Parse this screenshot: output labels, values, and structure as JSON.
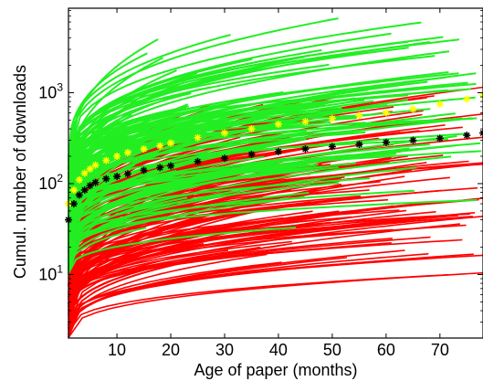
{
  "chart_data": {
    "type": "line",
    "title": "",
    "xlabel": "Age of paper (months)",
    "ylabel": "Cumul. number of downloads",
    "xlim": [
      1,
      78
    ],
    "ylim": [
      2,
      8500
    ],
    "yscale": "log",
    "grid": false,
    "legend": "none",
    "x_ticks": [
      10,
      20,
      30,
      40,
      50,
      60,
      70
    ],
    "x_tick_labels": [
      "10",
      "20",
      "30",
      "40",
      "50",
      "60",
      "70"
    ],
    "y_ticks": [
      10,
      100,
      1000
    ],
    "y_tick_labels": [
      {
        "base": "10",
        "exp": "1"
      },
      {
        "base": "10",
        "exp": "2"
      },
      {
        "base": "10",
        "exp": "3"
      }
    ],
    "colors": {
      "green_papers": "#22ee22",
      "red_papers": "#ff0000",
      "mean_green": "#ffff00",
      "mean_red": "#000000"
    },
    "series": [
      {
        "marker": "asterisk",
        "color": "#ffff00",
        "x": [
          1,
          2,
          3,
          4,
          5,
          6,
          8,
          10,
          12,
          15,
          18,
          20,
          25,
          30,
          35,
          40,
          45,
          50,
          55,
          60,
          65,
          70,
          75,
          78
        ],
        "values": [
          60,
          85,
          110,
          130,
          145,
          160,
          180,
          200,
          220,
          240,
          260,
          280,
          320,
          360,
          400,
          450,
          480,
          520,
          560,
          600,
          660,
          750,
          850,
          930
        ]
      },
      {
        "marker": "asterisk",
        "color": "#000000",
        "x": [
          1,
          2,
          3,
          4,
          5,
          6,
          8,
          10,
          12,
          15,
          18,
          20,
          25,
          30,
          35,
          40,
          45,
          50,
          55,
          60,
          65,
          70,
          75,
          78
        ],
        "values": [
          40,
          60,
          75,
          85,
          95,
          103,
          113,
          120,
          128,
          140,
          150,
          157,
          175,
          190,
          210,
          225,
          240,
          255,
          270,
          285,
          300,
          315,
          340,
          360
        ]
      }
    ]
  }
}
